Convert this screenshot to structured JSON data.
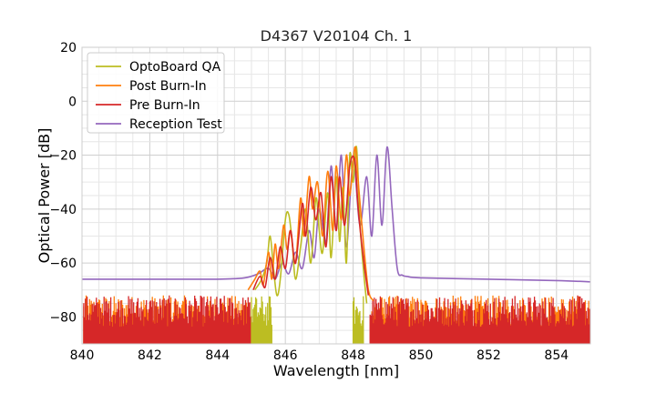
{
  "chart_data": {
    "type": "line",
    "title": "D4367 V20104 Ch. 1",
    "xlabel": "Wavelength [nm]",
    "ylabel": "Optical Power [dB]",
    "xlim": [
      840,
      855
    ],
    "ylim": [
      -90,
      20
    ],
    "xticks": [
      840,
      842,
      844,
      846,
      848,
      850,
      852,
      854
    ],
    "yticks": [
      -80,
      -60,
      -40,
      -20,
      0,
      20
    ],
    "xtick_labels": [
      "840",
      "842",
      "844",
      "846",
      "848",
      "850",
      "852",
      "854"
    ],
    "ytick_labels": [
      "−80",
      "−60",
      "−40",
      "−20",
      "0",
      "20"
    ],
    "grid": true,
    "legend_position": "upper-left",
    "noise_floor_range": [
      -90,
      -72
    ],
    "series": [
      {
        "name": "OptoBoard QA",
        "color": "#bcbd22",
        "x": [
          845.1,
          845.3,
          845.45,
          845.55,
          845.65,
          845.75,
          845.85,
          846.0,
          846.1,
          846.2,
          846.3,
          846.45,
          846.6,
          846.75,
          846.9,
          847.0,
          847.1,
          847.25,
          847.35,
          847.5,
          847.6,
          847.7,
          847.8,
          847.9,
          848.0,
          848.1,
          848.2,
          848.3,
          848.4
        ],
        "values": [
          -70,
          -66,
          -60,
          -50,
          -62,
          -72,
          -66,
          -44,
          -42,
          -52,
          -66,
          -54,
          -40,
          -60,
          -36,
          -48,
          -56,
          -34,
          -58,
          -28,
          -52,
          -32,
          -60,
          -20,
          -30,
          -17,
          -45,
          -62,
          -75
        ]
      },
      {
        "name": "Post Burn-In",
        "color": "#ff7f0e",
        "x": [
          844.9,
          845.1,
          845.25,
          845.35,
          845.5,
          845.6,
          845.7,
          845.8,
          845.95,
          846.05,
          846.15,
          846.3,
          846.45,
          846.55,
          846.7,
          846.8,
          846.95,
          847.1,
          847.25,
          847.4,
          847.5,
          847.65,
          847.8,
          847.9,
          848.05,
          848.15,
          848.3,
          848.45,
          848.6
        ],
        "values": [
          -70,
          -66,
          -63,
          -68,
          -56,
          -66,
          -53,
          -62,
          -46,
          -55,
          -48,
          -60,
          -36,
          -50,
          -28,
          -40,
          -30,
          -50,
          -26,
          -48,
          -24,
          -44,
          -20,
          -35,
          -17,
          -30,
          -52,
          -70,
          -74
        ]
      },
      {
        "name": "Pre Burn-In",
        "color": "#d62728",
        "x": [
          845.05,
          845.25,
          845.4,
          845.55,
          845.7,
          845.85,
          846.0,
          846.15,
          846.3,
          846.5,
          846.6,
          846.75,
          846.9,
          847.05,
          847.2,
          847.35,
          847.5,
          847.6,
          847.75,
          847.9,
          848.05,
          848.15,
          848.3,
          848.45
        ],
        "values": [
          -70,
          -65,
          -69,
          -58,
          -66,
          -54,
          -62,
          -48,
          -60,
          -38,
          -50,
          -32,
          -44,
          -34,
          -54,
          -28,
          -48,
          -28,
          -46,
          -24,
          -22,
          -40,
          -58,
          -72
        ]
      },
      {
        "name": "Reception Test",
        "color": "#9467bd",
        "x": [
          840.0,
          842.0,
          844.0,
          844.8,
          845.2,
          845.5,
          845.7,
          845.9,
          846.1,
          846.3,
          846.5,
          846.7,
          846.85,
          847.0,
          847.2,
          847.35,
          847.5,
          847.65,
          847.8,
          848.0,
          848.2,
          848.4,
          848.55,
          848.7,
          848.85,
          849.0,
          849.15,
          849.3,
          849.45,
          849.6,
          850.0,
          852.0,
          854.0,
          855.0
        ],
        "values": [
          -66,
          -66,
          -66,
          -65.5,
          -64,
          -62,
          -66,
          -60,
          -64,
          -56,
          -62,
          -48,
          -58,
          -40,
          -52,
          -24,
          -48,
          -20,
          -54,
          -22,
          -46,
          -28,
          -50,
          -20,
          -46,
          -17,
          -40,
          -62,
          -64.5,
          -65,
          -65.5,
          -66,
          -66.5,
          -67
        ]
      }
    ]
  }
}
